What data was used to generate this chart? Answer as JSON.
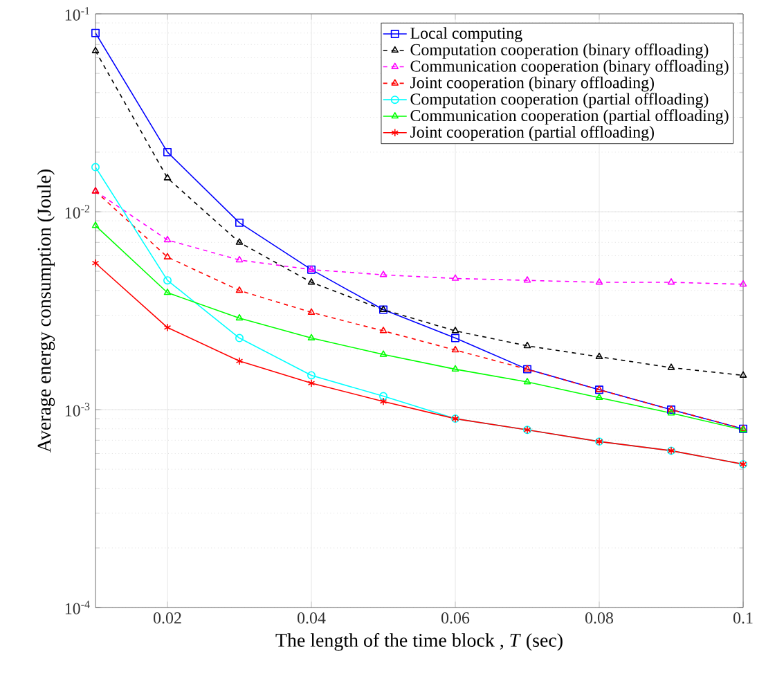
{
  "chart_data": {
    "type": "line",
    "xlabel": "The length of the time block , *T* (sec)",
    "ylabel": "Average energy consumption (Joule)",
    "x": [
      0.01,
      0.02,
      0.03,
      0.04,
      0.05,
      0.06,
      0.07,
      0.08,
      0.09,
      0.1
    ],
    "xlim": [
      0.01,
      0.1
    ],
    "xticks": [
      0.02,
      0.04,
      0.06,
      0.08,
      0.1
    ],
    "ylim": [
      0.0001,
      0.1
    ],
    "yticks": [
      {
        "value": 0.0001,
        "label": "10$^{-4}$"
      },
      {
        "value": 0.001,
        "label": "10$^{-3}$"
      },
      {
        "value": 0.01,
        "label": "10$^{-2}$"
      },
      {
        "value": 0.1,
        "label": "10$^{-1}$"
      }
    ],
    "log": "y",
    "grid": true,
    "legend": "top right",
    "series": [
      {
        "name": "Local computing",
        "color": "#0000ff",
        "marker": "square",
        "line_style": "solid",
        "values": [
          0.08,
          0.02,
          0.0088,
          0.0051,
          0.0032,
          0.0023,
          0.0016,
          0.00126,
          0.001,
          0.0008
        ]
      },
      {
        "name": "Computation cooperation (binary offloading)",
        "color": "#000000",
        "marker": "triangle",
        "line_style": "dashed",
        "values": [
          0.065,
          0.0148,
          0.007,
          0.0044,
          0.0032,
          0.0025,
          0.0021,
          0.00185,
          0.00163,
          0.00149
        ]
      },
      {
        "name": "Communication cooperation (binary offloading)",
        "color": "#ff00ff",
        "marker": "triangle",
        "line_style": "dashed",
        "values": [
          0.0127,
          0.0072,
          0.0057,
          0.0051,
          0.0048,
          0.0046,
          0.0045,
          0.0044,
          0.0044,
          0.0043
        ]
      },
      {
        "name": "Joint cooperation (binary offloading)",
        "color": "#ff0000",
        "marker": "triangle",
        "line_style": "dashed",
        "values": [
          0.0127,
          0.0059,
          0.004,
          0.0031,
          0.0025,
          0.002,
          0.0016,
          0.00126,
          0.001,
          0.0008
        ]
      },
      {
        "name": "Computation cooperation (partial offloading)",
        "color": "#00ffff",
        "marker": "circle",
        "line_style": "solid",
        "values": [
          0.0168,
          0.0045,
          0.0023,
          0.00149,
          0.00117,
          0.0009,
          0.00079,
          0.00069,
          0.00062,
          0.00053
        ]
      },
      {
        "name": "Communication cooperation (partial offloading)",
        "color": "#00ff00",
        "marker": "triangle",
        "line_style": "solid",
        "values": [
          0.0085,
          0.0039,
          0.0029,
          0.0023,
          0.0019,
          0.0016,
          0.00138,
          0.00115,
          0.00096,
          0.00079
        ]
      },
      {
        "name": "Joint cooperation (partial offloading)",
        "color": "#ff0000",
        "marker": "cross",
        "line_style": "solid",
        "values": [
          0.0055,
          0.0026,
          0.00176,
          0.00136,
          0.0011,
          0.0009,
          0.00079,
          0.00069,
          0.00062,
          0.00053
        ]
      }
    ]
  }
}
